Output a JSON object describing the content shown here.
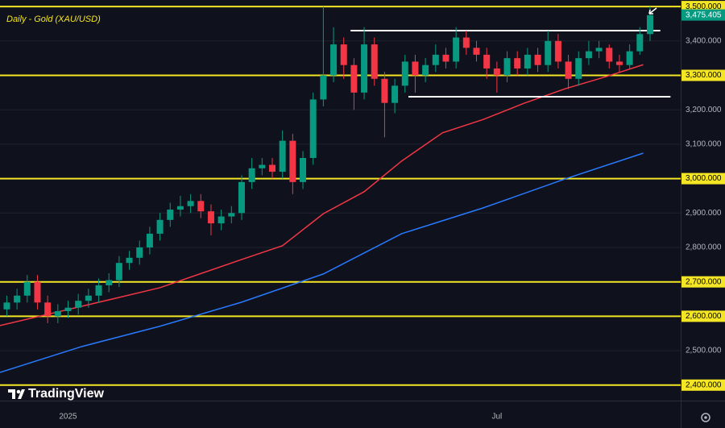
{
  "chart_data": {
    "type": "candlestick",
    "title": "Daily - Gold (XAU/USD)",
    "watermark": "TradingView",
    "x": [
      2,
      5,
      8,
      11,
      14,
      17,
      20,
      23,
      26,
      29,
      32,
      35,
      38,
      41,
      44,
      47,
      50,
      53,
      56,
      59,
      62,
      65,
      68,
      71,
      74,
      77,
      80,
      83,
      86,
      89,
      92,
      95,
      98,
      101,
      104,
      107,
      110,
      113,
      116,
      119,
      122,
      125,
      128,
      131,
      134,
      137,
      140,
      143,
      146,
      149,
      152,
      155,
      158,
      161,
      164,
      167,
      170,
      173,
      176,
      179,
      182,
      185,
      188,
      191
    ],
    "open": [
      2620,
      2640,
      2660,
      2700,
      2640,
      2600,
      2615,
      2625,
      2645,
      2660,
      2690,
      2705,
      2755,
      2770,
      2800,
      2840,
      2880,
      2910,
      2920,
      2935,
      2905,
      2870,
      2890,
      2900,
      2990,
      3030,
      3040,
      3020,
      3110,
      2990,
      3060,
      3230,
      3300,
      3390,
      3330,
      3250,
      3390,
      3290,
      3220,
      3270,
      3340,
      3300,
      3330,
      3360,
      3340,
      3410,
      3380,
      3360,
      3320,
      3300,
      3350,
      3320,
      3360,
      3330,
      3400,
      3340,
      3290,
      3350,
      3370,
      3380,
      3340,
      3330,
      3370,
      3420
    ],
    "high": [
      2660,
      2680,
      2720,
      2720,
      2660,
      2635,
      2645,
      2665,
      2680,
      2710,
      2725,
      2775,
      2790,
      2820,
      2860,
      2900,
      2930,
      2950,
      2955,
      2955,
      2925,
      2910,
      2920,
      3010,
      3060,
      3060,
      3060,
      3140,
      3130,
      3080,
      3250,
      3500,
      3440,
      3410,
      3350,
      3440,
      3410,
      3310,
      3290,
      3360,
      3360,
      3350,
      3390,
      3380,
      3440,
      3430,
      3400,
      3380,
      3340,
      3370,
      3370,
      3380,
      3380,
      3430,
      3420,
      3360,
      3370,
      3400,
      3400,
      3390,
      3360,
      3390,
      3440,
      3500
    ],
    "low": [
      2600,
      2620,
      2640,
      2620,
      2580,
      2580,
      2595,
      2605,
      2625,
      2640,
      2670,
      2685,
      2735,
      2750,
      2780,
      2820,
      2860,
      2890,
      2900,
      2885,
      2835,
      2850,
      2870,
      2880,
      2970,
      3010,
      3000,
      3000,
      2955,
      2970,
      3040,
      3210,
      3280,
      3290,
      3200,
      3230,
      3270,
      3120,
      3190,
      3250,
      3250,
      3280,
      3310,
      3320,
      3320,
      3360,
      3340,
      3290,
      3250,
      3280,
      3300,
      3300,
      3310,
      3310,
      3320,
      3260,
      3270,
      3330,
      3350,
      3320,
      3310,
      3320,
      3360,
      3400
    ],
    "close": [
      2640,
      2660,
      2700,
      2640,
      2600,
      2615,
      2625,
      2645,
      2660,
      2690,
      2705,
      2755,
      2770,
      2800,
      2840,
      2880,
      2910,
      2920,
      2935,
      2905,
      2870,
      2890,
      2900,
      2990,
      3030,
      3040,
      3020,
      3110,
      2990,
      3060,
      3230,
      3300,
      3390,
      3330,
      3250,
      3390,
      3290,
      3220,
      3270,
      3340,
      3300,
      3330,
      3360,
      3340,
      3410,
      3380,
      3360,
      3320,
      3300,
      3350,
      3320,
      3360,
      3330,
      3400,
      3340,
      3290,
      3350,
      3370,
      3380,
      3340,
      3330,
      3370,
      3420,
      3475
    ],
    "up_color": "#089981",
    "down_color": "#f23645",
    "moving_averages": [
      {
        "color": "#f23645",
        "x": [
          0,
          24,
          47,
          71,
          83,
          95,
          107,
          118,
          130,
          142,
          154,
          166,
          178,
          189
        ],
        "values": [
          2573,
          2629,
          2683,
          2765,
          2805,
          2898,
          2962,
          3051,
          3133,
          3172,
          3219,
          3261,
          3296,
          3331
        ]
      },
      {
        "color": "#2979ff",
        "x": [
          0,
          24,
          47,
          71,
          95,
          118,
          142,
          166,
          189
        ],
        "values": [
          2437,
          2512,
          2571,
          2641,
          2723,
          2840,
          2915,
          2999,
          3074
        ]
      }
    ],
    "drawn_lines": [
      {
        "color": "#ffffff",
        "y": 3430,
        "x0": 103,
        "x1": 194
      },
      {
        "color": "#ffffff",
        "y": 3238,
        "x0": 120,
        "x1": 197
      }
    ],
    "levels": [
      3500,
      3300,
      3000,
      2700,
      2600,
      2400
    ],
    "level_color": "#f5e625",
    "last_price": {
      "value": 3475.405,
      "label": "3,475.405"
    },
    "xlim": [
      0,
      200
    ],
    "ylim": [
      2355,
      3519
    ],
    "xticks": [
      {
        "value": 20,
        "label": "2025"
      },
      {
        "value": 146,
        "label": "Jul"
      }
    ],
    "yticks": [
      {
        "value": 2400,
        "label": "2,400.000"
      },
      {
        "value": 2500,
        "label": "2,500.000"
      },
      {
        "value": 2600,
        "label": "2,600.000"
      },
      {
        "value": 2700,
        "label": "2,700.000"
      },
      {
        "value": 2800,
        "label": "2,800.000"
      },
      {
        "value": 2900,
        "label": "2,900.000"
      },
      {
        "value": 3000,
        "label": "3,000.000"
      },
      {
        "value": 3100,
        "label": "3,100.000"
      },
      {
        "value": 3200,
        "label": "3,200.000"
      },
      {
        "value": 3300,
        "label": "3,300.000"
      },
      {
        "value": 3400,
        "label": "3,400.000"
      },
      {
        "value": 3500,
        "label": "3,500.000"
      }
    ],
    "grid": true
  }
}
